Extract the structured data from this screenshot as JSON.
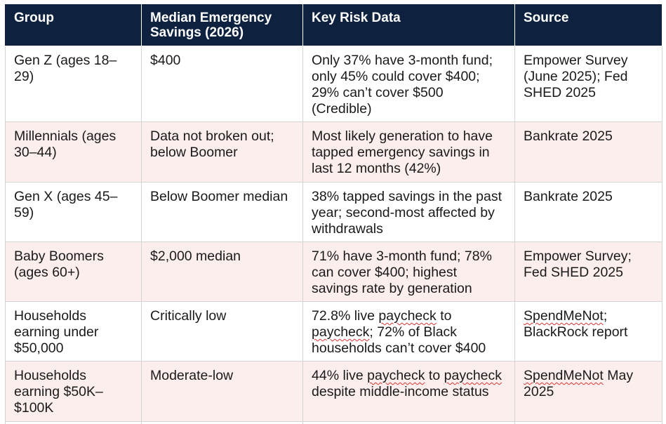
{
  "table": {
    "headers": [
      "Group",
      "Median Emergency Savings (2026)",
      "Key Risk Data",
      "Source"
    ],
    "rows": [
      {
        "group": "Gen Z (ages 18–29)",
        "median": "$400",
        "risk": "Only 37% have 3-month fund; only 45% could cover $400; 29% can’t cover $500 (Credible)",
        "source": "Empower Survey (June 2025); Fed SHED 2025"
      },
      {
        "group": "Millennials (ages 30–44)",
        "median": "Data not broken out; below Boomer",
        "risk": "Most likely generation to have tapped emergency savings in last 12 months (42%)",
        "source": "Bankrate 2025"
      },
      {
        "group": "Gen X (ages 45–59)",
        "median": "Below Boomer median",
        "risk": "38% tapped savings in the past year; second-most affected by withdrawals",
        "source": "Bankrate 2025"
      },
      {
        "group": "Baby Boomers (ages 60+)",
        "median": "$2,000 median",
        "risk": "71% have 3-month fund; 78% can cover $400; highest savings rate by generation",
        "source": "Empower Survey; Fed SHED 2025"
      },
      {
        "group": "Households earning under $50,000",
        "median": "Critically low",
        "risk_parts": [
          "72.8% live ",
          "paycheck",
          " to ",
          "paycheck",
          "; 72% of Black households can’t cover $400"
        ],
        "source_parts": [
          "SpendMeNot",
          "; BlackRock report"
        ]
      },
      {
        "group": "Households earning $50K–$100K",
        "median": "Moderate-low",
        "risk_parts": [
          "44% live ",
          "paycheck",
          " to ",
          "paycheck",
          " despite middle-income status"
        ],
        "source_parts": [
          "SpendMeNot",
          " May 2025"
        ]
      }
    ]
  }
}
